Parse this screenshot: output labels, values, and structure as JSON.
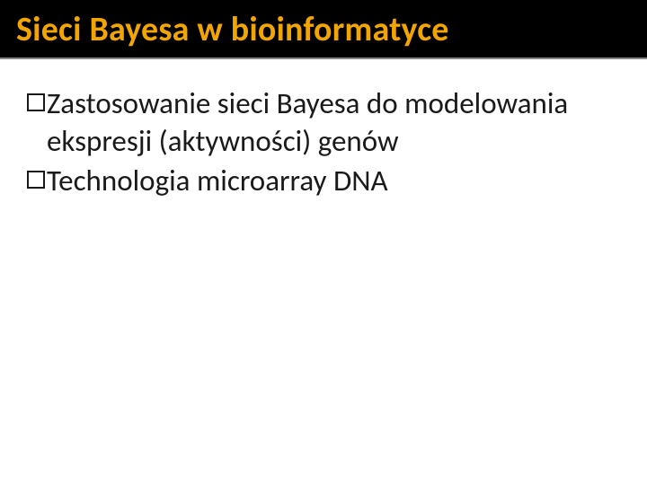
{
  "slide": {
    "title": "Sieci Bayesa w bioinformatyce",
    "title_color": "#f0a500",
    "title_bg": "#000000",
    "title_fontsize": 38,
    "body_color": "#1a1a1a",
    "body_fontsize": 33,
    "background_color": "#ffffff",
    "bullets": [
      {
        "text": "Zastosowanie sieci Bayesa do modelowania ekspresji (aktywności) genów"
      },
      {
        "text": "Technologia microarray DNA"
      }
    ]
  }
}
